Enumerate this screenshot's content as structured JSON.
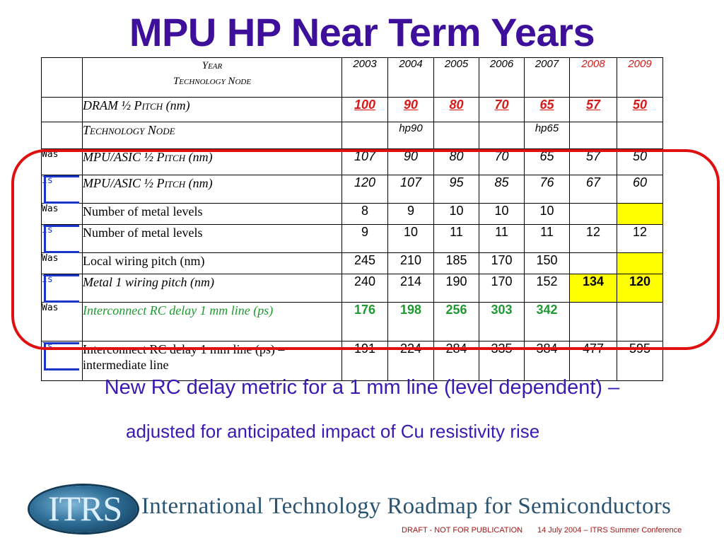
{
  "title": "MPU HP Near Term Years",
  "table": {
    "header": {
      "year_label": "Year",
      "node_label": "Technology Node",
      "years": [
        "2003",
        "2004",
        "2005",
        "2006",
        "2007",
        "2008",
        "2009"
      ]
    },
    "rows": [
      {
        "tag": "",
        "label_main": "DRAM ½ ",
        "label_sc": "Pitch",
        "label_tail": " (nm)",
        "values": [
          "100",
          "90",
          "80",
          "70",
          "65",
          "57",
          "50"
        ]
      },
      {
        "tag": "",
        "label_sc": "Technology Node",
        "values": [
          "",
          "hp90",
          "",
          "",
          "hp65",
          "",
          ""
        ]
      },
      {
        "tag": "Was",
        "label_main": "MPU/ASIC ½ ",
        "label_sc": "Pitch",
        "label_tail": " (nm)",
        "values": [
          "107",
          "90",
          "80",
          "70",
          "65",
          "57",
          "50"
        ]
      },
      {
        "tag": "Is",
        "label_main": "MPU/ASIC ½ ",
        "label_sc": "Pitch",
        "label_tail": " (nm)",
        "values": [
          "120",
          "107",
          "95",
          "85",
          "76",
          "67",
          "60"
        ]
      },
      {
        "tag": "Was",
        "label": "Number of metal levels",
        "values": [
          "8",
          "9",
          "10",
          "10",
          "10",
          "",
          ""
        ]
      },
      {
        "tag": "Is",
        "label": "Number of metal levels",
        "values": [
          "9",
          "10",
          "11",
          "11",
          "11",
          "12",
          "12"
        ]
      },
      {
        "tag": "Was",
        "label": "Local wiring pitch (nm)",
        "values": [
          "245",
          "210",
          "185",
          "170",
          "150",
          "",
          ""
        ]
      },
      {
        "tag": "Is",
        "label": "Metal 1 wiring pitch (nm)",
        "values": [
          "240",
          "214",
          "190",
          "170",
          "152",
          "134",
          "120"
        ]
      },
      {
        "tag": "Was",
        "label": "Interconnect RC delay 1 mm line (ps)",
        "values": [
          "176",
          "198",
          "256",
          "303",
          "342",
          "",
          ""
        ]
      },
      {
        "tag": "Is",
        "label": "Interconnect RC delay 1 mm line (ps) – intermediate line",
        "values": [
          "191",
          "224",
          "284",
          "335",
          "384",
          "477",
          "595"
        ]
      }
    ]
  },
  "note": {
    "line1": "New RC delay metric for a 1 mm line (level dependent) –",
    "line2": "adjusted for anticipated impact of Cu resistivity rise"
  },
  "footer": {
    "logo_text": "ITRS",
    "org_name": "International Technology Roadmap for Semiconductors",
    "draft": "DRAFT - NOT FOR PUBLICATION",
    "conference": "14 July 2004 – ITRS Summer Conference"
  },
  "colors": {
    "title": "#3d0f9b",
    "highlight_oval": "#e01010",
    "red_values": "#d61a1a",
    "green_values": "#1d9a2f",
    "yellow_highlight": "#ffff00",
    "is_bracket": "#1a36c8"
  }
}
